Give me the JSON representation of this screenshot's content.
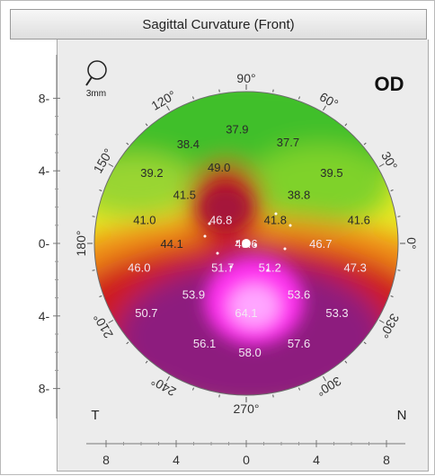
{
  "window": {
    "title": "Sagittal Curvature (Front)"
  },
  "eye": {
    "label": "OD"
  },
  "zoom": {
    "label": "3mm"
  },
  "corners": {
    "temporal": "T",
    "nasal": "N"
  },
  "left_axis": {
    "ticks": [
      "8",
      "4",
      "0",
      "4",
      "8"
    ]
  },
  "bottom_axis": {
    "ticks": [
      "8",
      "4",
      "0",
      "4",
      "8"
    ]
  },
  "angles": [
    {
      "label": "90°",
      "deg": 90
    },
    {
      "label": "60°",
      "deg": 60
    },
    {
      "label": "30°",
      "deg": 30
    },
    {
      "label": "0°",
      "deg": 0
    },
    {
      "label": "330°",
      "deg": 330
    },
    {
      "label": "300°",
      "deg": 300
    },
    {
      "label": "270°",
      "deg": 270
    },
    {
      "label": "240°",
      "deg": 240
    },
    {
      "label": "210°",
      "deg": 210
    },
    {
      "label": "180°",
      "deg": 180
    },
    {
      "label": "150°",
      "deg": 150
    },
    {
      "label": "120°",
      "deg": 120
    }
  ],
  "curvature_values": [
    {
      "value": "37.9",
      "x": -0.5,
      "y": 6.3,
      "tone": "dark"
    },
    {
      "value": "38.4",
      "x": -3.2,
      "y": 5.5,
      "tone": "dark"
    },
    {
      "value": "37.7",
      "x": 2.3,
      "y": 5.6,
      "tone": "dark"
    },
    {
      "value": "39.2",
      "x": -5.2,
      "y": 3.9,
      "tone": "dark"
    },
    {
      "value": "49.0",
      "x": -1.5,
      "y": 4.2,
      "tone": "dark"
    },
    {
      "value": "39.5",
      "x": 4.7,
      "y": 3.9,
      "tone": "dark"
    },
    {
      "value": "41.5",
      "x": -3.4,
      "y": 2.7,
      "tone": "dark"
    },
    {
      "value": "38.8",
      "x": 2.9,
      "y": 2.7,
      "tone": "dark"
    },
    {
      "value": "41.0",
      "x": -5.6,
      "y": 1.3,
      "tone": "dark"
    },
    {
      "value": "46.8",
      "x": -1.4,
      "y": 1.3,
      "tone": "light"
    },
    {
      "value": "41.8",
      "x": 1.6,
      "y": 1.3,
      "tone": "dark"
    },
    {
      "value": "41.6",
      "x": 6.2,
      "y": 1.3,
      "tone": "dark"
    },
    {
      "value": "44.1",
      "x": -4.1,
      "y": 0.0,
      "tone": "dark"
    },
    {
      "value": "48.6",
      "x": 0.0,
      "y": 0.0,
      "tone": "light"
    },
    {
      "value": "46.7",
      "x": 4.1,
      "y": 0.0,
      "tone": "light"
    },
    {
      "value": "46.0",
      "x": -5.9,
      "y": -1.3,
      "tone": "light"
    },
    {
      "value": "51.7",
      "x": -1.3,
      "y": -1.3,
      "tone": "light"
    },
    {
      "value": "51.2",
      "x": 1.3,
      "y": -1.3,
      "tone": "light"
    },
    {
      "value": "47.3",
      "x": 6.0,
      "y": -1.3,
      "tone": "light"
    },
    {
      "value": "53.9",
      "x": -2.9,
      "y": -2.8,
      "tone": "light"
    },
    {
      "value": "53.6",
      "x": 2.9,
      "y": -2.8,
      "tone": "light"
    },
    {
      "value": "50.7",
      "x": -5.5,
      "y": -3.8,
      "tone": "light"
    },
    {
      "value": "64.1",
      "x": 0.0,
      "y": -3.8,
      "tone": "light"
    },
    {
      "value": "53.3",
      "x": 5.0,
      "y": -3.8,
      "tone": "light"
    },
    {
      "value": "56.1",
      "x": -2.3,
      "y": -5.5,
      "tone": "light"
    },
    {
      "value": "57.6",
      "x": 2.9,
      "y": -5.5,
      "tone": "light"
    },
    {
      "value": "58.0",
      "x": 0.2,
      "y": -6.0,
      "tone": "light"
    }
  ],
  "colors": {
    "flat": "#44c22a",
    "mid_green": "#b8e23a",
    "yellow": "#f2df1a",
    "orange": "#f08a15",
    "red": "#c8161c",
    "purple": "#8a1a7a",
    "magenta": "#ff2ef2"
  }
}
